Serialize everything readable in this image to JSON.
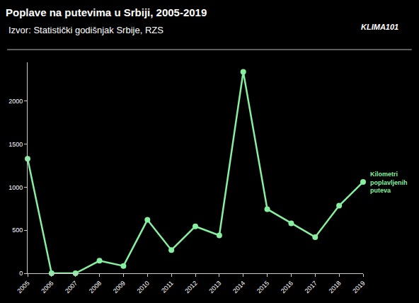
{
  "chart_data": {
    "type": "line",
    "title": "Poplave na putevima u Srbiji, 2005-2019",
    "subtitle": "Izvor: Statistički godišnjak Srbije, RZS",
    "logo": "KLIMA101",
    "x": [
      2005,
      2006,
      2007,
      2008,
      2009,
      2010,
      2011,
      2012,
      2013,
      2014,
      2015,
      2016,
      2017,
      2018,
      2019
    ],
    "series": [
      {
        "name": "Kilometri poplavljenih puteva",
        "color": "#86efa0",
        "values": [
          1330,
          0,
          0,
          145,
          85,
          620,
          270,
          545,
          440,
          2340,
          745,
          580,
          420,
          785,
          1060
        ]
      }
    ],
    "marker": "circle",
    "xlim": [
      2005,
      2019
    ],
    "xticks": [
      2005,
      2006,
      2007,
      2008,
      2009,
      2010,
      2011,
      2012,
      2013,
      2014,
      2015,
      2016,
      2017,
      2018,
      2019
    ],
    "ylim": [
      0,
      2450
    ],
    "yticks": [
      0,
      500,
      1000,
      1500,
      2000
    ],
    "grid": false
  }
}
